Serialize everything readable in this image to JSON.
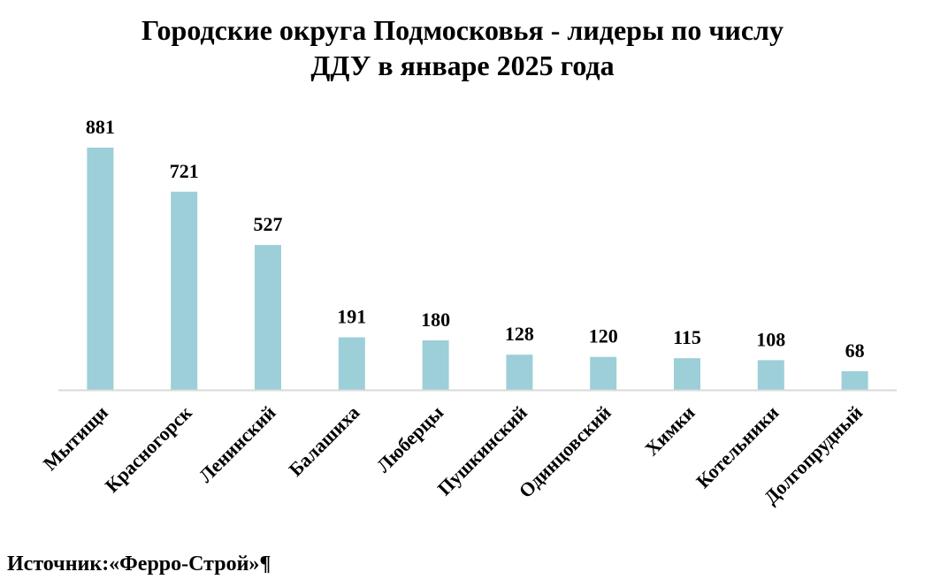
{
  "chart_data": {
    "type": "bar",
    "title": "Городские округа Подмосковья - лидеры по числу ДДУ в январе 2025 года",
    "title_lines": [
      "Городские округа Подмосковья - лидеры по числу",
      "ДДУ в январе 2025 года"
    ],
    "categories": [
      "Мытищи",
      "Красногорск",
      "Ленинский",
      "Балашиха",
      "Люберцы",
      "Пушкинский",
      "Одинцовский",
      "Химки",
      "Котельники",
      "Долгопрудный"
    ],
    "values": [
      881,
      721,
      527,
      191,
      180,
      128,
      120,
      115,
      108,
      68
    ],
    "data_labels": [
      "881",
      "721",
      "527",
      "191",
      "180",
      "128",
      "120",
      "115",
      "108",
      "68"
    ],
    "xlabel": "",
    "ylabel": "",
    "ylim": [
      0,
      881
    ],
    "grid": false,
    "legend": "none",
    "bar_color": "#9ccfd8",
    "axis_color": "#d9d9d9"
  },
  "footer": {
    "source": "Источник:«Ферро-Строй»¶"
  }
}
